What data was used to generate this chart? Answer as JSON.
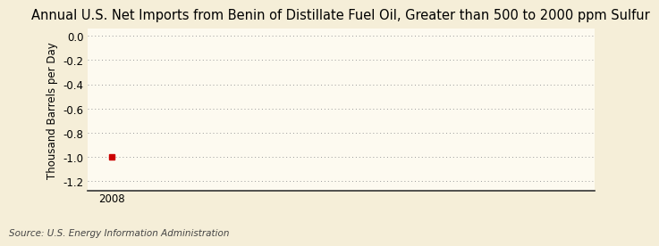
{
  "title": "Annual U.S. Net Imports from Benin of Distillate Fuel Oil, Greater than 500 to 2000 ppm Sulfur",
  "ylabel": "Thousand Barrels per Day",
  "source": "Source: U.S. Energy Information Administration",
  "x_data": [
    2008
  ],
  "y_data": [
    -1.0
  ],
  "xlim": [
    2007.4,
    2020
  ],
  "ylim": [
    -1.28,
    0.06
  ],
  "yticks": [
    0.0,
    -0.2,
    -0.4,
    -0.6,
    -0.8,
    -1.0,
    -1.2
  ],
  "xticks": [
    2008
  ],
  "background_color": "#f5eed8",
  "plot_bg_color": "#fdfaf0",
  "grid_color": "#999999",
  "marker_color": "#cc0000",
  "title_fontsize": 10.5,
  "label_fontsize": 8.5,
  "tick_fontsize": 8.5,
  "source_fontsize": 7.5
}
